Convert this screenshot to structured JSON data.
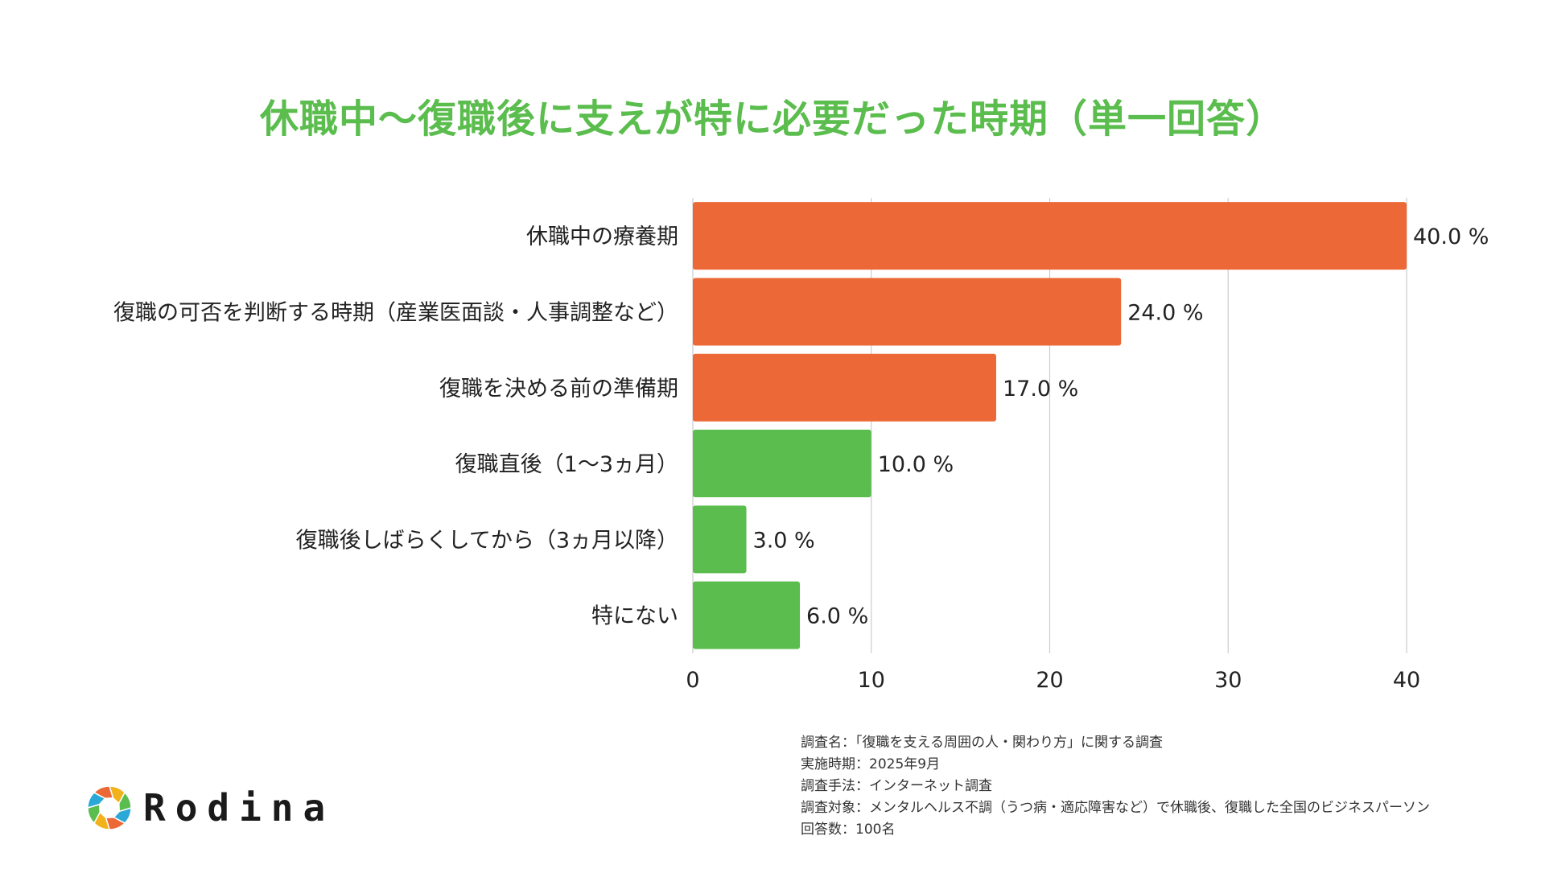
{
  "chart_data": {
    "type": "bar",
    "orientation": "horizontal",
    "title": "休職中〜復職後に支えが特に必要だった時期（単一回答）",
    "categories": [
      "休職中の療養期",
      "復職の可否を判断する時期（産業医面談・人事調整など）",
      "復職を決める前の準備期",
      "復職直後（1〜3ヵ月）",
      "復職後しばらくしてから（3ヵ月以降）",
      "特にない"
    ],
    "values": [
      40.0,
      24.0,
      17.0,
      10.0,
      3.0,
      6.0
    ],
    "value_labels": [
      "40.0 %",
      "24.0 %",
      "17.0 %",
      "10.0 %",
      "3.0 %",
      "6.0 %"
    ],
    "bar_colors": [
      "#ec6837",
      "#ec6837",
      "#ec6837",
      "#5bbd4e",
      "#5bbd4e",
      "#5bbd4e"
    ],
    "xlim": [
      0,
      40
    ],
    "xticks": [
      0,
      10,
      20,
      30,
      40
    ],
    "grid": true,
    "xlabel": "",
    "ylabel": ""
  },
  "notes": [
    "調査名：「復職を支える周囲の人・関わり方」に関する調査",
    "実施時期：2025年9月",
    "調査手法：インターネット調査",
    "調査対象：メンタルヘルス不調（うつ病・適応障害など）で休職後、復職した全国のビジネスパーソン",
    "回答数：100名"
  ],
  "logo": {
    "text": "Rodina",
    "icon": "aperture-logo-icon",
    "colors": [
      "#f2b21b",
      "#5bbd4e",
      "#2aa8d8",
      "#ec6837"
    ]
  },
  "colors": {
    "title": "#5bbd4e",
    "grid": "#cccccc"
  }
}
